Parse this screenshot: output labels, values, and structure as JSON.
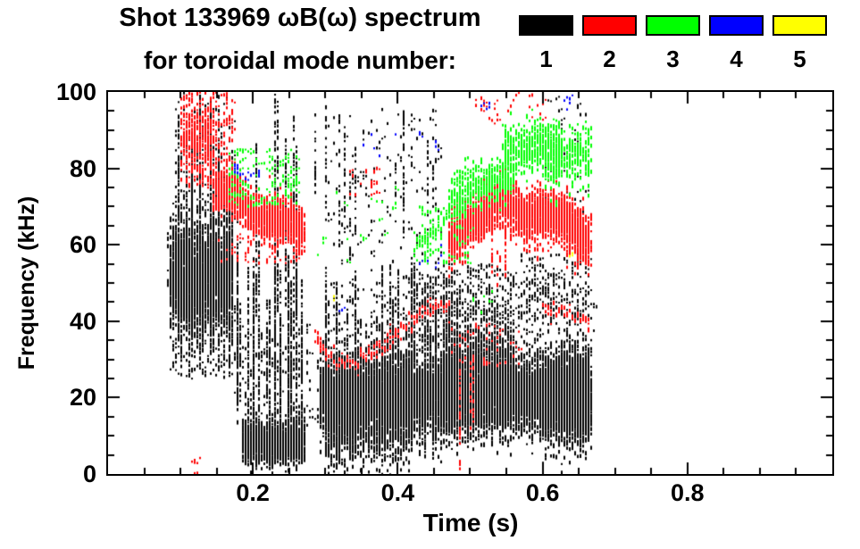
{
  "title": {
    "line1": "Shot 133969 ωB(ω) spectrum",
    "line2": "for toroidal mode number:"
  },
  "legend": {
    "items": [
      {
        "label": "1",
        "color": "#000000"
      },
      {
        "label": "2",
        "color": "#ff0000"
      },
      {
        "label": "3",
        "color": "#00ff00"
      },
      {
        "label": "4",
        "color": "#0000ff"
      },
      {
        "label": "5",
        "color": "#ffff00"
      }
    ]
  },
  "axes": {
    "x": {
      "label": "Time (s)",
      "min": 0.0,
      "max": 1.0,
      "ticks": [
        {
          "v": 0.2,
          "label": "0.2"
        },
        {
          "v": 0.4,
          "label": "0.4"
        },
        {
          "v": 0.6,
          "label": "0.6"
        },
        {
          "v": 0.8,
          "label": "0.8"
        }
      ],
      "minor_step": 0.05
    },
    "y": {
      "label": "Frequency (kHz)",
      "min": 0,
      "max": 100,
      "ticks": [
        {
          "v": 0,
          "label": "0"
        },
        {
          "v": 20,
          "label": "20"
        },
        {
          "v": 40,
          "label": "40"
        },
        {
          "v": 60,
          "label": "60"
        },
        {
          "v": 80,
          "label": "80"
        },
        {
          "v": 100,
          "label": "100"
        }
      ],
      "minor_step": 5
    }
  },
  "chart_data": {
    "type": "scatter",
    "subtype": "mode-spectrogram",
    "title": "Shot 133969 ωB(ω) spectrum for toroidal mode number: 1-5",
    "xlabel": "Time (s)",
    "ylabel": "Frequency (kHz)",
    "xlim": [
      0.0,
      1.0
    ],
    "ylim": [
      0,
      100
    ],
    "grid": false,
    "legend_position": "top-right",
    "series_colors": {
      "1": "#000000",
      "2": "#ff0000",
      "3": "#00ff00",
      "4": "#0000ff",
      "5": "#ffff00"
    },
    "activity_time_range": [
      0.08,
      0.67
    ],
    "clusters": [
      {
        "c": 1,
        "type": "streaks",
        "t": [
          0.083,
          0.175
        ],
        "fb": [
          25,
          45
        ],
        "ft": [
          60,
          100
        ],
        "k": 26
      },
      {
        "c": 1,
        "type": "band",
        "t": [
          0.083,
          0.17
        ],
        "f": [
          52,
          52
        ],
        "s": 6,
        "n": 2600
      },
      {
        "c": 1,
        "type": "specks",
        "t": [
          0.083,
          0.18
        ],
        "f": [
          25,
          45
        ],
        "n": 150
      },
      {
        "c": 1,
        "type": "specks",
        "t": [
          0.09,
          0.18
        ],
        "f": [
          60,
          76
        ],
        "n": 120
      },
      {
        "c": 1,
        "type": "specks",
        "t": [
          0.09,
          0.17
        ],
        "f": [
          76,
          100
        ],
        "n": 80
      },
      {
        "c": 1,
        "type": "streaks",
        "t": [
          0.175,
          0.27
        ],
        "fb": [
          8,
          20
        ],
        "ft": [
          40,
          62
        ],
        "k": 20
      },
      {
        "c": 1,
        "type": "streaks",
        "t": [
          0.2,
          0.28
        ],
        "fb": [
          40,
          55
        ],
        "ft": [
          85,
          100
        ],
        "k": 6
      },
      {
        "c": 1,
        "type": "band",
        "t": [
          0.185,
          0.27
        ],
        "f": [
          8,
          8
        ],
        "s": 2.5,
        "n": 1700
      },
      {
        "c": 1,
        "type": "specks",
        "t": [
          0.175,
          0.28
        ],
        "f": [
          12,
          40
        ],
        "n": 200
      },
      {
        "c": 1,
        "type": "band",
        "t": [
          0.29,
          0.665
        ],
        "f": [
          20,
          21
        ],
        "s": 4.5,
        "n": 9000
      },
      {
        "c": 1,
        "type": "band",
        "t": [
          0.3,
          0.42
        ],
        "f": [
          16,
          18
        ],
        "s": 7,
        "n": 2200
      },
      {
        "c": 1,
        "type": "band",
        "t": [
          0.46,
          0.56
        ],
        "f": [
          24,
          24
        ],
        "s": 7,
        "n": 1500
      },
      {
        "c": 1,
        "type": "band",
        "t": [
          0.595,
          0.665
        ],
        "f": [
          20,
          20
        ],
        "s": 6,
        "n": 1800
      },
      {
        "c": 1,
        "type": "streaks",
        "t": [
          0.29,
          0.5
        ],
        "fb": [
          22,
          28
        ],
        "ft": [
          35,
          55
        ],
        "k": 30
      },
      {
        "c": 1,
        "type": "streaks",
        "t": [
          0.29,
          0.46
        ],
        "fb": [
          2,
          8
        ],
        "ft": [
          12,
          18
        ],
        "k": 22
      },
      {
        "c": 1,
        "type": "specks",
        "t": [
          0.3,
          0.67
        ],
        "f": [
          28,
          50
        ],
        "n": 500
      },
      {
        "c": 1,
        "type": "streaks",
        "t": [
          0.28,
          0.45
        ],
        "fb": [
          55,
          75
        ],
        "ft": [
          80,
          100
        ],
        "k": 10,
        "d": 0.55
      },
      {
        "c": 1,
        "type": "specks",
        "t": [
          0.3,
          0.46
        ],
        "f": [
          50,
          96
        ],
        "n": 160
      },
      {
        "c": 1,
        "type": "specks",
        "t": [
          0.41,
          0.48
        ],
        "f": [
          35,
          52
        ],
        "n": 150
      },
      {
        "c": 1,
        "type": "specks",
        "t": [
          0.46,
          0.56
        ],
        "f": [
          35,
          55
        ],
        "n": 220
      },
      {
        "c": 1,
        "type": "specks",
        "t": [
          0.57,
          0.665
        ],
        "f": [
          40,
          58
        ],
        "n": 160
      },
      {
        "c": 1,
        "type": "specks",
        "t": [
          0.6,
          0.665
        ],
        "f": [
          60,
          100
        ],
        "n": 50
      },
      {
        "c": 2,
        "type": "specks",
        "t": [
          0.1,
          0.17
        ],
        "f": [
          75,
          100
        ],
        "n": 220
      },
      {
        "c": 2,
        "type": "band",
        "t": [
          0.1,
          0.145
        ],
        "f": [
          88,
          88
        ],
        "s": 5,
        "n": 300
      },
      {
        "c": 2,
        "type": "band",
        "t": [
          0.145,
          0.27
        ],
        "f": [
          74,
          63
        ],
        "s": 2.8,
        "n": 1600,
        "w": [
          1.5,
          9
        ]
      },
      {
        "c": 2,
        "type": "specks",
        "t": [
          0.15,
          0.27
        ],
        "f": [
          55,
          63
        ],
        "n": 60
      },
      {
        "c": 2,
        "type": "path",
        "pts": [
          [
            0.285,
            36
          ],
          [
            0.3,
            31
          ],
          [
            0.325,
            29
          ],
          [
            0.35,
            30
          ],
          [
            0.375,
            33
          ],
          [
            0.405,
            38
          ],
          [
            0.43,
            42
          ],
          [
            0.455,
            44
          ],
          [
            0.47,
            43
          ]
        ],
        "s": 1.2
      },
      {
        "c": 2,
        "type": "band",
        "t": [
          0.47,
          0.53
        ],
        "f": [
          61,
          70
        ],
        "s": 3,
        "n": 1000
      },
      {
        "c": 2,
        "type": "band",
        "t": [
          0.53,
          0.6
        ],
        "f": [
          70,
          68
        ],
        "s": 3.2,
        "n": 950,
        "w": [
          2,
          7
        ]
      },
      {
        "c": 2,
        "type": "band",
        "t": [
          0.6,
          0.665
        ],
        "f": [
          67,
          63
        ],
        "s": 3.2,
        "n": 950,
        "w": [
          2,
          5
        ]
      },
      {
        "c": 2,
        "type": "streaks",
        "t": [
          0.5,
          0.66
        ],
        "fb": [
          48,
          58
        ],
        "ft": [
          60,
          68
        ],
        "k": 8,
        "d": 0.6
      },
      {
        "c": 2,
        "type": "specks",
        "t": [
          0.5,
          0.6
        ],
        "f": [
          92,
          100
        ],
        "n": 25
      },
      {
        "c": 2,
        "type": "path",
        "pts": [
          [
            0.6,
            44
          ],
          [
            0.63,
            42
          ],
          [
            0.665,
            40
          ]
        ],
        "s": 1
      },
      {
        "c": 2,
        "type": "specks",
        "t": [
          0.33,
          0.37
        ],
        "f": [
          73,
          80
        ],
        "n": 25
      },
      {
        "c": 2,
        "type": "specks",
        "t": [
          0.47,
          0.57
        ],
        "f": [
          28,
          40
        ],
        "n": 40
      },
      {
        "c": 2,
        "type": "streaks",
        "t": [
          0.46,
          0.53
        ],
        "fb": [
          0,
          15
        ],
        "ft": [
          25,
          35
        ],
        "k": 3,
        "d": 0.7
      },
      {
        "c": 2,
        "type": "specks",
        "t": [
          0.115,
          0.125
        ],
        "f": [
          0,
          6
        ],
        "n": 6
      },
      {
        "c": 3,
        "type": "specks",
        "t": [
          0.165,
          0.26
        ],
        "f": [
          70,
          85
        ],
        "n": 130
      },
      {
        "c": 3,
        "type": "path",
        "pts": [
          [
            0.42,
            58
          ],
          [
            0.445,
            64
          ],
          [
            0.47,
            68
          ],
          [
            0.5,
            72
          ],
          [
            0.53,
            74
          ],
          [
            0.56,
            76
          ]
        ],
        "s": 1.6
      },
      {
        "c": 3,
        "type": "band",
        "t": [
          0.47,
          0.56
        ],
        "f": [
          73,
          79
        ],
        "s": 2.5,
        "n": 420
      },
      {
        "c": 3,
        "type": "band",
        "t": [
          0.545,
          0.625
        ],
        "f": [
          85,
          86
        ],
        "s": 3,
        "n": 550
      },
      {
        "c": 3,
        "type": "band",
        "t": [
          0.6,
          0.665
        ],
        "f": [
          80,
          85
        ],
        "s": 4,
        "n": 330
      },
      {
        "c": 3,
        "type": "specks",
        "t": [
          0.42,
          0.5
        ],
        "f": [
          55,
          70
        ],
        "n": 80
      },
      {
        "c": 3,
        "type": "specks",
        "t": [
          0.28,
          0.4
        ],
        "f": [
          55,
          75
        ],
        "n": 18
      },
      {
        "c": 3,
        "type": "specks",
        "t": [
          0.5,
          0.53
        ],
        "f": [
          42,
          48
        ],
        "n": 6
      },
      {
        "c": 4,
        "type": "specks",
        "t": [
          0.17,
          0.21
        ],
        "f": [
          77,
          81
        ],
        "n": 14
      },
      {
        "c": 4,
        "type": "specks",
        "t": [
          0.35,
          0.46
        ],
        "f": [
          82,
          90
        ],
        "n": 10
      },
      {
        "c": 4,
        "type": "specks",
        "t": [
          0.43,
          0.46
        ],
        "f": [
          54,
          60
        ],
        "n": 6
      },
      {
        "c": 4,
        "type": "specks",
        "t": [
          0.315,
          0.325
        ],
        "f": [
          42,
          44
        ],
        "n": 2
      },
      {
        "c": 4,
        "type": "specks",
        "t": [
          0.515,
          0.525
        ],
        "f": [
          95,
          99
        ],
        "n": 4
      },
      {
        "c": 4,
        "type": "specks",
        "t": [
          0.625,
          0.64
        ],
        "f": [
          95,
          99
        ],
        "n": 5
      },
      {
        "c": 5,
        "type": "specks",
        "t": [
          0.31,
          0.316
        ],
        "f": [
          45,
          47
        ],
        "n": 2
      },
      {
        "c": 5,
        "type": "specks",
        "t": [
          0.63,
          0.64
        ],
        "f": [
          56,
          58
        ],
        "n": 2
      }
    ]
  }
}
